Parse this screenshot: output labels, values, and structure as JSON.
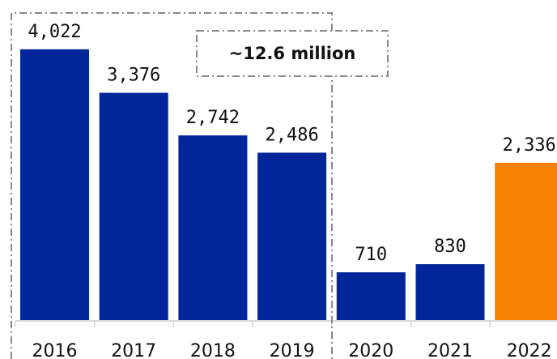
{
  "chart_data": {
    "type": "bar",
    "categories": [
      "2016",
      "2017",
      "2018",
      "2019",
      "2020",
      "2021",
      "2022"
    ],
    "values": [
      4022,
      3376,
      2742,
      2486,
      710,
      830,
      2336
    ],
    "value_labels": [
      "4,022",
      "3,376",
      "2,742",
      "2,486",
      "710",
      "830",
      "2,336"
    ],
    "title": "",
    "xlabel": "",
    "ylabel": "",
    "ylim": [
      0,
      4200
    ],
    "grid": false,
    "bar_colors": [
      "#002699",
      "#002699",
      "#002699",
      "#002699",
      "#002699",
      "#002699",
      "#F78100"
    ],
    "annotation": {
      "text": "~12.6 million",
      "brackets": [
        "2016",
        "2019"
      ]
    }
  }
}
